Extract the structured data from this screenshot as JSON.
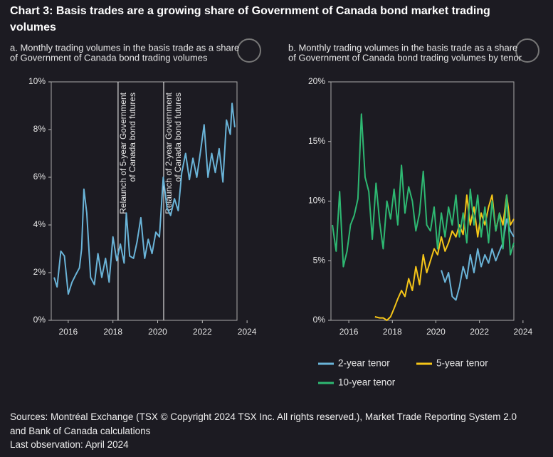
{
  "title": "Chart 3: Basis trades are a growing share of Government of Canada bond market trading volumes",
  "footer": [
    "Sources: Montréal Exchange (TSX © Copyright 2024 TSX Inc. All rights reserved.), Market Trade Reporting System 2.0",
    "and Bank of Canada calculations",
    "Last observation: April 2024"
  ],
  "chart_data": [
    {
      "type": "line",
      "subtitle": [
        "a. Monthly trading volumes in the basis trade as a share",
        "of Government of Canada bond trading volumes"
      ],
      "xlim": [
        2015.24,
        2023.55
      ],
      "xticks": [
        2016,
        2018,
        2020,
        2022,
        2024
      ],
      "ylim": [
        0,
        10
      ],
      "yticks": [
        {
          "value": 0,
          "label": "0%"
        },
        {
          "value": 2,
          "label": "2%"
        },
        {
          "value": 4,
          "label": "4%"
        },
        {
          "value": 6,
          "label": "6%"
        },
        {
          "value": 8,
          "label": "8%"
        },
        {
          "value": 10,
          "label": "10%"
        }
      ],
      "annotations": [
        {
          "x": 2018.23,
          "text": [
            "Relaunch of 5-year Government",
            "of Canada bond futures"
          ]
        },
        {
          "x": 2020.27,
          "text": [
            "Relaunch of 2-year Government",
            "of Canada bond futures"
          ]
        }
      ],
      "series": [
        {
          "color": "#6ab4d8",
          "x": [
            2015.37,
            2015.5,
            2015.67,
            2015.83,
            2016.0,
            2016.17,
            2016.33,
            2016.5,
            2016.6,
            2016.7,
            2016.83,
            2017.0,
            2017.17,
            2017.33,
            2017.5,
            2017.67,
            2017.83,
            2018.0,
            2018.17,
            2018.33,
            2018.5,
            2018.6,
            2018.75,
            2018.92,
            2019.08,
            2019.25,
            2019.42,
            2019.58,
            2019.75,
            2019.92,
            2020.08,
            2020.25,
            2020.42,
            2020.58,
            2020.75,
            2020.92,
            2021.08,
            2021.25,
            2021.42,
            2021.58,
            2021.75,
            2021.92,
            2022.08,
            2022.25,
            2022.42,
            2022.58,
            2022.75,
            2022.92,
            2023.08,
            2023.25,
            2023.33,
            2023.45
          ],
          "values": [
            1.8,
            1.4,
            2.9,
            2.7,
            1.1,
            1.6,
            1.9,
            2.2,
            3.0,
            5.5,
            4.5,
            1.8,
            1.5,
            2.8,
            1.8,
            2.6,
            1.6,
            3.5,
            2.5,
            3.2,
            2.4,
            4.5,
            2.7,
            2.6,
            3.3,
            4.3,
            2.6,
            3.4,
            2.8,
            3.7,
            3.5,
            6.0,
            4.7,
            4.4,
            5.1,
            4.6,
            6.2,
            7.0,
            5.9,
            6.8,
            6.0,
            7.1,
            8.2,
            6.0,
            7.0,
            6.2,
            7.2,
            5.8,
            8.4,
            7.8,
            9.1,
            8.1
          ]
        }
      ]
    },
    {
      "type": "line",
      "subtitle": [
        "b. Monthly trading volumes in the basis trade as a share",
        "of Government of Canada bond trading volumes by tenor"
      ],
      "xlim": [
        2015.18,
        2023.58
      ],
      "xticks": [
        2016,
        2018,
        2020,
        2022,
        2024
      ],
      "ylim": [
        0,
        20
      ],
      "yticks": [
        {
          "value": 0,
          "label": "0%"
        },
        {
          "value": 5,
          "label": "5%"
        },
        {
          "value": 10,
          "label": "10%"
        },
        {
          "value": 15,
          "label": "15%"
        },
        {
          "value": 20,
          "label": "20%"
        }
      ],
      "series": [
        {
          "name": "2-year tenor",
          "color": "#6ab4d8",
          "x": [
            2020.25,
            2020.42,
            2020.58,
            2020.75,
            2020.92,
            2021.08,
            2021.25,
            2021.42,
            2021.58,
            2021.75,
            2021.92,
            2022.08,
            2022.25,
            2022.42,
            2022.58,
            2022.75,
            2022.92,
            2023.08,
            2023.25,
            2023.42,
            2023.58
          ],
          "values": [
            4.2,
            3.2,
            4.0,
            2.0,
            1.7,
            2.8,
            4.5,
            3.5,
            5.5,
            4.0,
            6.0,
            4.5,
            5.5,
            4.8,
            6.0,
            5.0,
            5.8,
            6.5,
            8.5,
            7.5,
            7.0
          ]
        },
        {
          "name": "5-year tenor",
          "color": "#f5c518",
          "x": [
            2017.2,
            2017.42,
            2017.58,
            2017.75,
            2017.92,
            2018.08,
            2018.25,
            2018.42,
            2018.58,
            2018.75,
            2018.92,
            2019.08,
            2019.25,
            2019.42,
            2019.58,
            2019.75,
            2019.92,
            2020.08,
            2020.25,
            2020.42,
            2020.58,
            2020.75,
            2020.92,
            2021.08,
            2021.25,
            2021.42,
            2021.58,
            2021.75,
            2021.92,
            2022.08,
            2022.25,
            2022.42,
            2022.58,
            2022.75,
            2022.92,
            2023.08,
            2023.25,
            2023.42,
            2023.58
          ],
          "values": [
            0.3,
            0.2,
            0.2,
            0.0,
            0.3,
            1.0,
            1.8,
            2.5,
            2.0,
            3.5,
            2.5,
            4.5,
            3.0,
            5.5,
            4.0,
            5.0,
            6.0,
            5.5,
            7.0,
            5.8,
            6.5,
            7.5,
            7.0,
            8.0,
            7.2,
            10.5,
            8.0,
            9.5,
            7.0,
            9.0,
            8.0,
            9.5,
            10.5,
            7.5,
            9.0,
            8.0,
            10.5,
            8.0,
            8.5
          ]
        },
        {
          "name": "10-year tenor",
          "color": "#2eb872",
          "x": [
            2015.25,
            2015.42,
            2015.58,
            2015.75,
            2015.92,
            2016.08,
            2016.25,
            2016.42,
            2016.58,
            2016.75,
            2016.92,
            2017.08,
            2017.25,
            2017.42,
            2017.58,
            2017.75,
            2017.92,
            2018.08,
            2018.25,
            2018.42,
            2018.58,
            2018.75,
            2018.92,
            2019.08,
            2019.25,
            2019.42,
            2019.58,
            2019.75,
            2019.92,
            2020.08,
            2020.25,
            2020.42,
            2020.58,
            2020.75,
            2020.92,
            2021.08,
            2021.25,
            2021.42,
            2021.58,
            2021.75,
            2021.92,
            2022.08,
            2022.25,
            2022.42,
            2022.58,
            2022.75,
            2022.92,
            2023.08,
            2023.25,
            2023.42,
            2023.58
          ],
          "values": [
            8.0,
            5.8,
            10.8,
            4.5,
            5.8,
            8.0,
            8.8,
            10.2,
            17.3,
            12.0,
            10.8,
            6.8,
            11.5,
            8.2,
            6.0,
            10.0,
            8.5,
            11.0,
            8.0,
            13.0,
            9.0,
            11.2,
            10.0,
            7.5,
            9.0,
            12.5,
            8.0,
            7.5,
            9.5,
            6.0,
            9.0,
            7.0,
            9.5,
            8.0,
            10.5,
            7.0,
            9.0,
            6.5,
            11.0,
            8.0,
            10.5,
            7.0,
            9.5,
            6.5,
            10.0,
            7.5,
            9.0,
            6.0,
            10.5,
            5.5,
            6.5
          ]
        }
      ]
    }
  ]
}
